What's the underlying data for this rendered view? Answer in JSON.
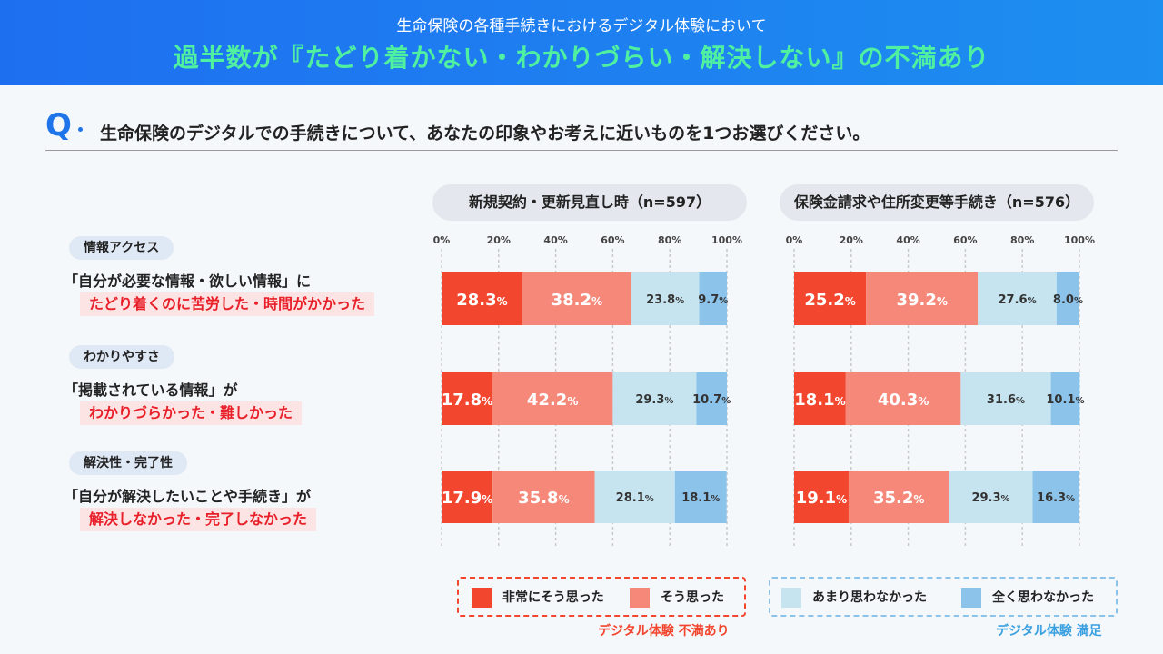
{
  "header": {
    "subtitle": "生命保険の各種手続きにおけるデジタル体験において",
    "title": "過半数が『たどり着かない・わかりづらい・解決しない』の不満あり"
  },
  "question": {
    "mark": "Q",
    "text": "生命保険のデジタルでの手続きについて、あなたの印象やお考えに近いものを1つお選びください。"
  },
  "rows": [
    {
      "tag": "情報アクセス",
      "statement": "「自分が必要な情報・欲しい情報」に",
      "highlight": "たどり着くのに苦労した・時間がかかった"
    },
    {
      "tag": "わかりやすさ",
      "statement": "「掲載されている情報」が",
      "highlight": "わかりづらかった・難しかった"
    },
    {
      "tag": "解決性・完了性",
      "statement": "「自分が解決したいことや手続き」が",
      "highlight": "解決しなかった・完了しなかった"
    }
  ],
  "legend": {
    "items": [
      "非常にそう思った",
      "そう思った",
      "あまり思わなかった",
      "全く思わなかった"
    ],
    "colors": [
      "#f2462e",
      "#f6887a",
      "#c5e4ef",
      "#8cc3ea"
    ],
    "dissatisfied_caption": "デジタル体験 不満あり",
    "satisfied_caption": "デジタル体験 満足"
  },
  "chart_data": [
    {
      "type": "bar",
      "orientation": "horizontal-stacked-100",
      "title": "新規契約・更新見直し時（n=597）",
      "xticks": [
        "0%",
        "20%",
        "40%",
        "60%",
        "80%",
        "100%"
      ],
      "xlim": [
        0,
        100
      ],
      "categories": [
        "情報アクセス",
        "わかりやすさ",
        "解決性・完了性"
      ],
      "series": [
        {
          "name": "非常にそう思った",
          "values": [
            28.3,
            17.8,
            17.9
          ]
        },
        {
          "name": "そう思った",
          "values": [
            38.2,
            42.2,
            35.8
          ]
        },
        {
          "name": "あまり思わなかった",
          "values": [
            23.8,
            29.3,
            28.1
          ]
        },
        {
          "name": "全く思わなかった",
          "values": [
            9.7,
            10.7,
            18.1
          ]
        }
      ]
    },
    {
      "type": "bar",
      "orientation": "horizontal-stacked-100",
      "title": "保険金請求や住所変更等手続き（n=576）",
      "xticks": [
        "0%",
        "20%",
        "40%",
        "60%",
        "80%",
        "100%"
      ],
      "xlim": [
        0,
        100
      ],
      "categories": [
        "情報アクセス",
        "わかりやすさ",
        "解決性・完了性"
      ],
      "series": [
        {
          "name": "非常にそう思った",
          "values": [
            25.2,
            18.1,
            19.1
          ]
        },
        {
          "name": "そう思った",
          "values": [
            39.2,
            40.3,
            35.2
          ]
        },
        {
          "name": "あまり思わなかった",
          "values": [
            27.6,
            31.6,
            29.3
          ]
        },
        {
          "name": "全く思わなかった",
          "values": [
            8.0,
            10.1,
            16.3
          ]
        }
      ]
    }
  ]
}
